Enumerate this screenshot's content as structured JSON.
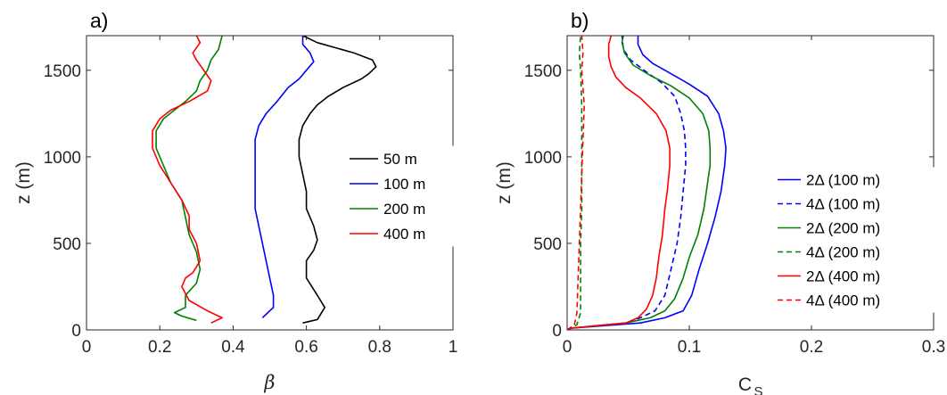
{
  "figure": {
    "background": "#ffffff"
  },
  "chart_data": [
    {
      "type": "line",
      "panel_label": "a)",
      "title": "",
      "xlabel": "β",
      "ylabel": "z (m)",
      "xlim": [
        0,
        1
      ],
      "ylim": [
        0,
        1700
      ],
      "xticks": [
        0,
        0.2,
        0.4,
        0.6,
        0.8,
        1
      ],
      "xtick_labels": [
        "0",
        "0.2",
        "0.4",
        "0.6",
        "0.8",
        "1"
      ],
      "yticks": [
        0,
        500,
        1000,
        1500
      ],
      "ytick_labels": [
        "0",
        "500",
        "1000",
        "1500"
      ],
      "grid": false,
      "legend_position": "middle-right",
      "series": [
        {
          "name": "50 m",
          "color": "#000000",
          "dash": "solid",
          "points": [
            [
              0.59,
              40
            ],
            [
              0.61,
              50
            ],
            [
              0.63,
              60
            ],
            [
              0.65,
              130
            ],
            [
              0.63,
              200
            ],
            [
              0.6,
              300
            ],
            [
              0.6,
              400
            ],
            [
              0.62,
              460
            ],
            [
              0.63,
              520
            ],
            [
              0.62,
              600
            ],
            [
              0.6,
              700
            ],
            [
              0.6,
              800
            ],
            [
              0.59,
              900
            ],
            [
              0.58,
              1000
            ],
            [
              0.58,
              1100
            ],
            [
              0.59,
              1180
            ],
            [
              0.61,
              1250
            ],
            [
              0.63,
              1300
            ],
            [
              0.66,
              1350
            ],
            [
              0.7,
              1400
            ],
            [
              0.75,
              1450
            ],
            [
              0.77,
              1480
            ],
            [
              0.79,
              1520
            ],
            [
              0.78,
              1560
            ],
            [
              0.73,
              1600
            ],
            [
              0.68,
              1630
            ],
            [
              0.63,
              1660
            ],
            [
              0.59,
              1700
            ]
          ]
        },
        {
          "name": "100 m",
          "color": "#0000ff",
          "dash": "solid",
          "points": [
            [
              0.48,
              70
            ],
            [
              0.49,
              90
            ],
            [
              0.51,
              130
            ],
            [
              0.51,
              200
            ],
            [
              0.5,
              300
            ],
            [
              0.49,
              400
            ],
            [
              0.48,
              500
            ],
            [
              0.47,
              600
            ],
            [
              0.46,
              700
            ],
            [
              0.46,
              800
            ],
            [
              0.46,
              900
            ],
            [
              0.46,
              1000
            ],
            [
              0.46,
              1100
            ],
            [
              0.47,
              1180
            ],
            [
              0.49,
              1250
            ],
            [
              0.52,
              1320
            ],
            [
              0.55,
              1400
            ],
            [
              0.58,
              1450
            ],
            [
              0.6,
              1500
            ],
            [
              0.62,
              1550
            ],
            [
              0.61,
              1600
            ],
            [
              0.59,
              1650
            ],
            [
              0.59,
              1700
            ]
          ]
        },
        {
          "name": "200 m",
          "color": "#008000",
          "dash": "solid",
          "points": [
            [
              0.3,
              55
            ],
            [
              0.26,
              80
            ],
            [
              0.24,
              100
            ],
            [
              0.27,
              130
            ],
            [
              0.27,
              200
            ],
            [
              0.3,
              270
            ],
            [
              0.31,
              350
            ],
            [
              0.3,
              450
            ],
            [
              0.28,
              550
            ],
            [
              0.27,
              650
            ],
            [
              0.26,
              750
            ],
            [
              0.23,
              850
            ],
            [
              0.21,
              950
            ],
            [
              0.19,
              1050
            ],
            [
              0.19,
              1150
            ],
            [
              0.21,
              1220
            ],
            [
              0.24,
              1270
            ],
            [
              0.27,
              1320
            ],
            [
              0.3,
              1380
            ],
            [
              0.31,
              1440
            ],
            [
              0.33,
              1500
            ],
            [
              0.34,
              1560
            ],
            [
              0.36,
              1620
            ],
            [
              0.37,
              1700
            ]
          ]
        },
        {
          "name": "400 m",
          "color": "#ff0000",
          "dash": "solid",
          "points": [
            [
              0.34,
              40
            ],
            [
              0.37,
              70
            ],
            [
              0.33,
              110
            ],
            [
              0.28,
              170
            ],
            [
              0.26,
              250
            ],
            [
              0.27,
              300
            ],
            [
              0.29,
              330
            ],
            [
              0.31,
              400
            ],
            [
              0.3,
              500
            ],
            [
              0.28,
              580
            ],
            [
              0.28,
              660
            ],
            [
              0.26,
              750
            ],
            [
              0.23,
              850
            ],
            [
              0.2,
              950
            ],
            [
              0.18,
              1050
            ],
            [
              0.18,
              1150
            ],
            [
              0.2,
              1220
            ],
            [
              0.23,
              1270
            ],
            [
              0.28,
              1320
            ],
            [
              0.33,
              1380
            ],
            [
              0.34,
              1440
            ],
            [
              0.32,
              1500
            ],
            [
              0.3,
              1560
            ],
            [
              0.29,
              1600
            ],
            [
              0.31,
              1660
            ],
            [
              0.3,
              1700
            ]
          ]
        }
      ]
    },
    {
      "type": "line",
      "panel_label": "b)",
      "title": "",
      "xlabel": "C",
      "xlabel_sub": "S",
      "ylabel": "z (m)",
      "xlim": [
        0,
        0.3
      ],
      "ylim": [
        0,
        1700
      ],
      "xticks": [
        0,
        0.1,
        0.2,
        0.3
      ],
      "xtick_labels": [
        "0",
        "0.1",
        "0.2",
        "0.3"
      ],
      "yticks": [
        0,
        500,
        1000,
        1500
      ],
      "ytick_labels": [
        "0",
        "500",
        "1000",
        "1500"
      ],
      "grid": false,
      "legend_position": "right",
      "series": [
        {
          "name": "2Δ (100 m)",
          "color": "#0000ff",
          "dash": "solid",
          "points": [
            [
              0.0,
              0
            ],
            [
              0.003,
              10
            ],
            [
              0.06,
              40
            ],
            [
              0.08,
              70
            ],
            [
              0.095,
              110
            ],
            [
              0.102,
              200
            ],
            [
              0.108,
              350
            ],
            [
              0.115,
              500
            ],
            [
              0.121,
              650
            ],
            [
              0.126,
              800
            ],
            [
              0.129,
              950
            ],
            [
              0.13,
              1050
            ],
            [
              0.128,
              1150
            ],
            [
              0.124,
              1250
            ],
            [
              0.115,
              1350
            ],
            [
              0.1,
              1420
            ],
            [
              0.085,
              1480
            ],
            [
              0.07,
              1540
            ],
            [
              0.062,
              1590
            ],
            [
              0.058,
              1650
            ],
            [
              0.058,
              1700
            ]
          ]
        },
        {
          "name": "4Δ (100 m)",
          "color": "#0000ff",
          "dash": "dashed",
          "points": [
            [
              0.0,
              0
            ],
            [
              0.003,
              10
            ],
            [
              0.048,
              40
            ],
            [
              0.06,
              70
            ],
            [
              0.072,
              110
            ],
            [
              0.08,
              200
            ],
            [
              0.085,
              350
            ],
            [
              0.09,
              500
            ],
            [
              0.093,
              650
            ],
            [
              0.095,
              800
            ],
            [
              0.097,
              950
            ],
            [
              0.097,
              1050
            ],
            [
              0.096,
              1150
            ],
            [
              0.093,
              1250
            ],
            [
              0.088,
              1350
            ],
            [
              0.077,
              1430
            ],
            [
              0.063,
              1500
            ],
            [
              0.052,
              1560
            ],
            [
              0.046,
              1620
            ],
            [
              0.045,
              1700
            ]
          ]
        },
        {
          "name": "2Δ (200 m)",
          "color": "#008000",
          "dash": "solid",
          "points": [
            [
              0.0,
              0
            ],
            [
              0.003,
              10
            ],
            [
              0.048,
              40
            ],
            [
              0.068,
              70
            ],
            [
              0.08,
              110
            ],
            [
              0.088,
              180
            ],
            [
              0.095,
              300
            ],
            [
              0.1,
              420
            ],
            [
              0.107,
              550
            ],
            [
              0.112,
              700
            ],
            [
              0.115,
              850
            ],
            [
              0.117,
              950
            ],
            [
              0.117,
              1050
            ],
            [
              0.116,
              1150
            ],
            [
              0.111,
              1250
            ],
            [
              0.1,
              1340
            ],
            [
              0.085,
              1410
            ],
            [
              0.068,
              1470
            ],
            [
              0.054,
              1530
            ],
            [
              0.047,
              1600
            ],
            [
              0.045,
              1660
            ],
            [
              0.046,
              1700
            ]
          ]
        },
        {
          "name": "4Δ (200 m)",
          "color": "#008000",
          "dash": "dashed",
          "points": [
            [
              0.0,
              0
            ],
            [
              0.008,
              30
            ],
            [
              0.011,
              100
            ],
            [
              0.011,
              300
            ],
            [
              0.011,
              500
            ],
            [
              0.012,
              700
            ],
            [
              0.012,
              900
            ],
            [
              0.012,
              1100
            ],
            [
              0.012,
              1300
            ],
            [
              0.011,
              1500
            ],
            [
              0.01,
              1600
            ],
            [
              0.011,
              1700
            ]
          ]
        },
        {
          "name": "2Δ (400 m)",
          "color": "#ff0000",
          "dash": "solid",
          "points": [
            [
              0.0,
              0
            ],
            [
              0.003,
              10
            ],
            [
              0.048,
              40
            ],
            [
              0.058,
              70
            ],
            [
              0.065,
              120
            ],
            [
              0.07,
              200
            ],
            [
              0.073,
              300
            ],
            [
              0.075,
              420
            ],
            [
              0.078,
              550
            ],
            [
              0.08,
              700
            ],
            [
              0.082,
              800
            ],
            [
              0.084,
              950
            ],
            [
              0.084,
              1050
            ],
            [
              0.081,
              1150
            ],
            [
              0.073,
              1250
            ],
            [
              0.06,
              1340
            ],
            [
              0.048,
              1400
            ],
            [
              0.04,
              1460
            ],
            [
              0.036,
              1520
            ],
            [
              0.034,
              1580
            ],
            [
              0.034,
              1650
            ],
            [
              0.036,
              1700
            ]
          ]
        },
        {
          "name": "4Δ (400 m)",
          "color": "#ff0000",
          "dash": "dashed",
          "points": [
            [
              0.0,
              0
            ],
            [
              0.006,
              30
            ],
            [
              0.008,
              100
            ],
            [
              0.009,
              300
            ],
            [
              0.01,
              500
            ],
            [
              0.011,
              700
            ],
            [
              0.012,
              900
            ],
            [
              0.013,
              1100
            ],
            [
              0.014,
              1300
            ],
            [
              0.013,
              1400
            ],
            [
              0.012,
              1500
            ],
            [
              0.013,
              1600
            ],
            [
              0.012,
              1700
            ]
          ]
        }
      ]
    }
  ]
}
